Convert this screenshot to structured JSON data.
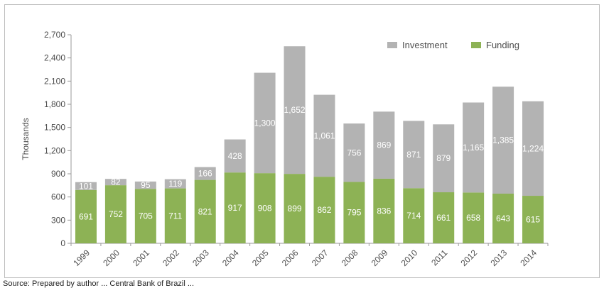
{
  "chart_data": {
    "type": "bar",
    "stacked": true,
    "categories": [
      "1999",
      "2000",
      "2001",
      "2002",
      "2003",
      "2004",
      "2005",
      "2006",
      "2007",
      "2008",
      "2009",
      "2010",
      "2011",
      "2012",
      "2013",
      "2014"
    ],
    "series": [
      {
        "name": "Funding",
        "color": "#8db255",
        "values": [
          691,
          752,
          705,
          711,
          821,
          917,
          908,
          899,
          862,
          795,
          836,
          714,
          661,
          658,
          643,
          615
        ]
      },
      {
        "name": "Investment",
        "color": "#b3b3b3",
        "values": [
          101,
          82,
          95,
          119,
          166,
          428,
          1300,
          1652,
          1061,
          756,
          869,
          871,
          879,
          1165,
          1385,
          1224
        ]
      }
    ],
    "data_labels": {
      "Funding": [
        "691",
        "752",
        "705",
        "711",
        "821",
        "917",
        "908",
        "899",
        "862",
        "795",
        "836",
        "714",
        "661",
        "658",
        "643",
        "615"
      ],
      "Investment": [
        "101",
        "82",
        "95",
        "119",
        "166",
        "428",
        "1,300",
        "1,652",
        "1,061",
        "756",
        "869",
        "871",
        "879",
        "1,165",
        "1,385",
        "1,224"
      ]
    },
    "legend_order": [
      "Investment",
      "Funding"
    ],
    "legend_position": "top-right",
    "title": "",
    "xlabel": "",
    "ylabel": "Thousands",
    "ylim": [
      0,
      2700
    ],
    "yticks": [
      "0",
      "300",
      "600",
      "900",
      "1,200",
      "1,500",
      "1,800",
      "2,100",
      "2,400",
      "2,700"
    ],
    "grid": false
  },
  "source_note": "Source: Prepared by author ... Central Bank of Brazil ..."
}
